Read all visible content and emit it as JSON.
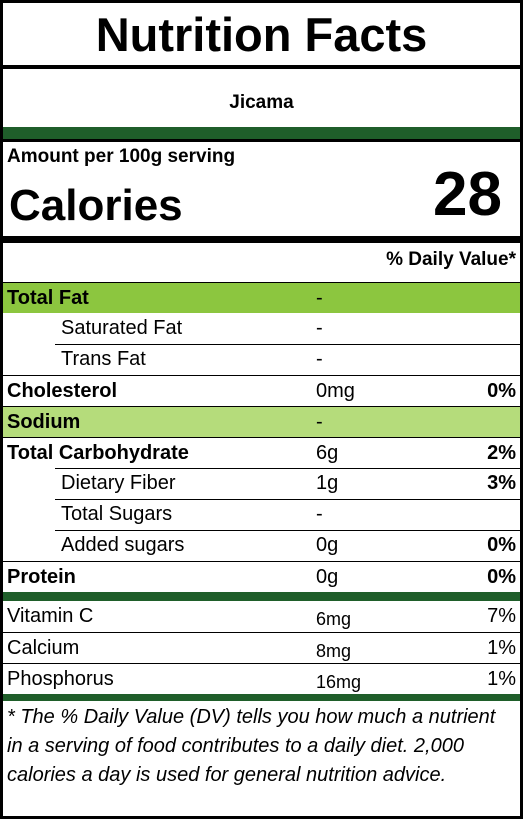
{
  "title": "Nutrition Facts",
  "food_name": "Jicama",
  "serving": {
    "amount_label": "Amount per 100g serving",
    "calories_label": "Calories",
    "calories_value": "28"
  },
  "daily_value_header": "% Daily Value*",
  "nutrients": [
    {
      "name": "Total Fat",
      "amount": "-",
      "percent": ""
    },
    {
      "name": "Saturated Fat",
      "amount": "-",
      "percent": ""
    },
    {
      "name": "Trans Fat",
      "amount": "-",
      "percent": ""
    },
    {
      "name": "Cholesterol",
      "amount": "0mg",
      "percent": "0%"
    },
    {
      "name": "Sodium",
      "amount": "-",
      "percent": ""
    },
    {
      "name": "Total Carbohydrate",
      "amount": "6g",
      "percent": "2%"
    },
    {
      "name": "Dietary Fiber",
      "amount": "1g",
      "percent": "3%"
    },
    {
      "name": "Total Sugars",
      "amount": "-",
      "percent": ""
    },
    {
      "name": "Added sugars",
      "amount": "0g",
      "percent": "0%"
    },
    {
      "name": "Protein",
      "amount": "0g",
      "percent": "0%"
    }
  ],
  "vitamins": [
    {
      "name": "Vitamin C",
      "amount": "6mg",
      "percent": "7%"
    },
    {
      "name": "Calcium",
      "amount": "8mg",
      "percent": "1%"
    },
    {
      "name": "Phosphorus",
      "amount": "16mg",
      "percent": "1%"
    }
  ],
  "footnote": "* The % Daily Value (DV) tells you how much a nutrient in a serving of food contributes to a daily diet. 2,000 calories a day is used for general nutrition advice.",
  "colors": {
    "highlight": "#8cc63f",
    "sodium_highlight": "#b5dc7b",
    "separator": "#1f5e2a"
  }
}
